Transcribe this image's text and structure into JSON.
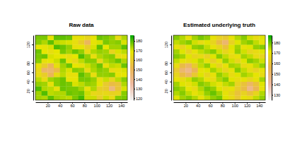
{
  "chart_data": [
    {
      "type": "heatmap",
      "title": "Raw data",
      "x": [
        5,
        15,
        25,
        35,
        45,
        55,
        65,
        75,
        85,
        95,
        105,
        115,
        125,
        135,
        145
      ],
      "y": [
        5,
        15,
        25,
        35,
        45,
        55,
        65,
        75,
        85,
        95,
        105,
        115,
        125,
        135
      ],
      "z": [
        [
          174,
          173,
          179,
          174,
          173,
          172,
          177,
          181,
          171,
          171,
          160,
          171,
          165,
          176,
          177
        ],
        [
          174,
          180,
          172,
          173,
          173,
          178,
          177,
          178,
          171,
          164,
          163,
          164,
          162,
          163,
          176
        ],
        [
          180,
          173,
          172,
          167,
          178,
          177,
          177,
          174,
          167,
          173,
          161,
          159,
          142,
          157,
          170
        ],
        [
          175,
          174,
          167,
          176,
          178,
          177,
          170,
          172,
          175,
          174,
          168,
          159,
          154,
          157,
          173
        ],
        [
          172,
          165,
          174,
          176,
          178,
          168,
          168,
          177,
          177,
          175,
          166,
          171,
          163,
          172,
          176
        ],
        [
          165,
          160,
          150,
          165,
          172,
          167,
          167,
          179,
          175,
          166,
          175,
          175,
          176,
          168,
          169
        ],
        [
          164,
          147,
          146,
          154,
          173,
          170,
          176,
          175,
          165,
          173,
          176,
          175,
          165,
          167,
          170
        ],
        [
          167,
          160,
          150,
          166,
          174,
          178,
          169,
          167,
          171,
          174,
          178,
          167,
          172,
          171,
          178
        ],
        [
          176,
          167,
          169,
          171,
          178,
          168,
          164,
          172,
          176,
          176,
          164,
          173,
          175,
          178,
          173
        ],
        [
          177,
          178,
          170,
          169,
          168,
          166,
          169,
          180,
          175,
          166,
          173,
          175,
          176,
          165,
          167
        ],
        [
          178,
          169,
          166,
          169,
          177,
          174,
          178,
          175,
          165,
          173,
          175,
          174,
          163,
          170,
          172
        ],
        [
          169,
          168,
          170,
          180,
          178,
          175,
          167,
          168,
          161,
          170,
          179,
          169,
          174,
          174,
          179
        ],
        [
          176,
          173,
          179,
          172,
          171,
          170,
          166,
          160,
          149,
          168,
          170,
          177,
          175,
          176,
          170
        ],
        [
          177,
          177,
          168,
          179,
          179,
          178,
          167,
          167,
          163,
          168,
          178,
          177,
          175,
          165,
          173
        ]
      ],
      "xlim": [
        0,
        150
      ],
      "ylim": [
        0,
        140
      ],
      "xticks": [
        20,
        40,
        60,
        80,
        100,
        120,
        140
      ],
      "yticks": [
        20,
        40,
        60,
        80,
        120
      ],
      "colorbar": {
        "range": [
          118,
          186
        ],
        "ticks": [
          120,
          130,
          140,
          150,
          160,
          170,
          180
        ]
      }
    },
    {
      "type": "heatmap",
      "title": "Estimated underlying truth",
      "x": [
        5,
        15,
        25,
        35,
        45,
        55,
        65,
        75,
        85,
        95,
        105,
        115,
        125,
        135,
        145
      ],
      "y": [
        5,
        15,
        25,
        35,
        45,
        55,
        65,
        75,
        85,
        95,
        105,
        115,
        125,
        135
      ],
      "z": [
        [
          172,
          176,
          178,
          175,
          170,
          174,
          177,
          179,
          172,
          168,
          162,
          170,
          168,
          174,
          177
        ],
        [
          175,
          178,
          174,
          170,
          173,
          177,
          180,
          176,
          170,
          166,
          160,
          165,
          160,
          166,
          175
        ],
        [
          178,
          176,
          171,
          168,
          175,
          179,
          177,
          172,
          168,
          170,
          163,
          158,
          145,
          155,
          170
        ],
        [
          176,
          172,
          169,
          173,
          178,
          176,
          173,
          170,
          174,
          176,
          165,
          160,
          152,
          160,
          172
        ],
        [
          170,
          168,
          173,
          177,
          175,
          170,
          168,
          175,
          178,
          172,
          168,
          170,
          166,
          170,
          176
        ],
        [
          166,
          158,
          152,
          162,
          172,
          166,
          170,
          177,
          174,
          168,
          172,
          176,
          174,
          171,
          168
        ],
        [
          162,
          150,
          145,
          155,
          170,
          172,
          176,
          173,
          166,
          170,
          178,
          174,
          168,
          165,
          170
        ],
        [
          168,
          158,
          152,
          163,
          174,
          177,
          172,
          165,
          170,
          176,
          175,
          168,
          170,
          174,
          177
        ],
        [
          174,
          170,
          168,
          172,
          175,
          170,
          164,
          170,
          177,
          173,
          166,
          172,
          178,
          176,
          173
        ],
        [
          178,
          176,
          172,
          166,
          168,
          165,
          172,
          178,
          174,
          168,
          170,
          176,
          174,
          168,
          166
        ],
        [
          176,
          172,
          165,
          170,
          174,
          176,
          178,
          173,
          166,
          170,
          177,
          173,
          166,
          168,
          172
        ],
        [
          170,
          166,
          172,
          177,
          178,
          174,
          170,
          166,
          160,
          172,
          176,
          170,
          172,
          177,
          178
        ],
        [
          174,
          176,
          178,
          173,
          168,
          172,
          166,
          158,
          150,
          165,
          172,
          176,
          178,
          174,
          170
        ],
        [
          178,
          175,
          170,
          176,
          179,
          177,
          170,
          165,
          162,
          170,
          175,
          178,
          173,
          168,
          172
        ]
      ],
      "xlim": [
        0,
        150
      ],
      "ylim": [
        0,
        140
      ],
      "xticks": [
        20,
        40,
        60,
        80,
        100,
        120,
        140
      ],
      "yticks": [
        20,
        40,
        60,
        80,
        120
      ],
      "colorbar": {
        "range": [
          125,
          187
        ],
        "ticks": [
          130,
          140,
          150,
          160,
          170,
          180
        ]
      }
    }
  ]
}
